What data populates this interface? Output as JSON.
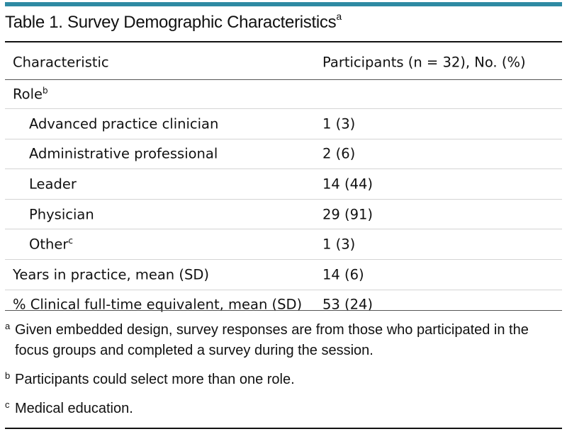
{
  "colors": {
    "accent": "#2e8aa3",
    "text": "#111111",
    "divider": "#d4d4d4"
  },
  "table": {
    "title": "Table 1. Survey Demographic Characteristics",
    "title_footnote": "a",
    "header": {
      "characteristic": "Characteristic",
      "participants": "Participants (n = 32), No. (%)"
    },
    "rows": [
      {
        "characteristic": "Role",
        "footnote": "b",
        "value": "",
        "indent": false
      },
      {
        "characteristic": "Advanced practice clinician",
        "value": "1 (3)",
        "indent": true
      },
      {
        "characteristic": "Administrative professional",
        "value": "2 (6)",
        "indent": true
      },
      {
        "characteristic": "Leader",
        "value": "14 (44)",
        "indent": true
      },
      {
        "characteristic": "Physician",
        "value": "29 (91)",
        "indent": true
      },
      {
        "characteristic": "Other",
        "footnote": "c",
        "value": "1 (3)",
        "indent": true
      },
      {
        "characteristic": "Years in practice, mean (SD)",
        "value": "14 (6)",
        "indent": false
      },
      {
        "characteristic": "% Clinical full-time equivalent, mean (SD)",
        "value": "53 (24)",
        "indent": false
      }
    ]
  },
  "footnotes": [
    {
      "mark": "a",
      "text": "Given embedded design, survey responses are from those who participated in the focus groups and completed a survey during the session."
    },
    {
      "mark": "b",
      "text": "Participants could select more than one role."
    },
    {
      "mark": "c",
      "text": "Medical education."
    }
  ]
}
